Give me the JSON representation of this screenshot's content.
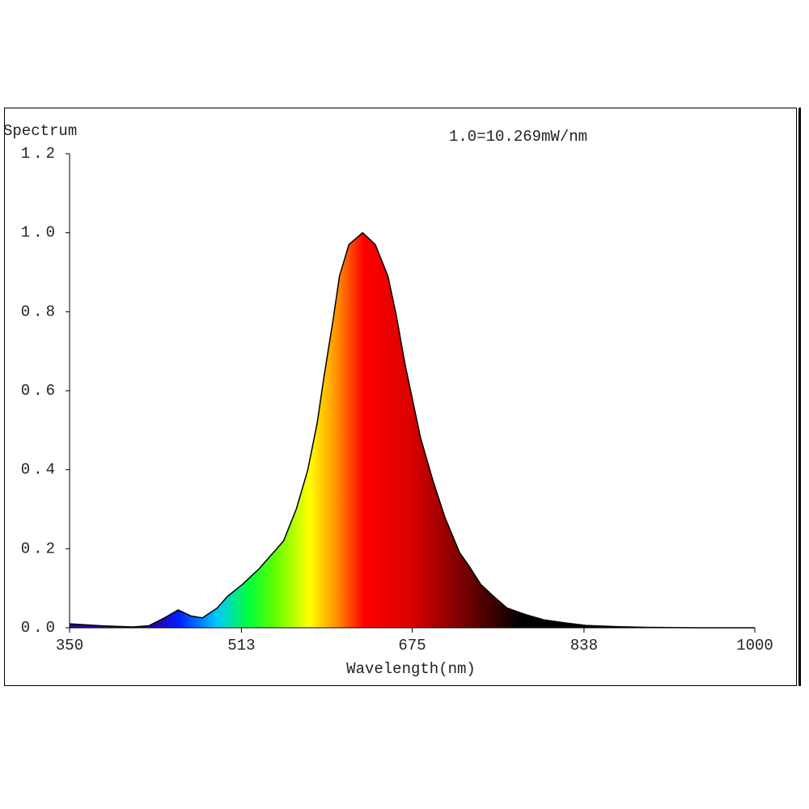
{
  "chart_data": {
    "type": "area",
    "y_label": "Spectrum",
    "annotation": "1.0=10.269mW/nm",
    "x_label": "Wavelength(nm)",
    "x": [
      350,
      380,
      410,
      425,
      440,
      453,
      465,
      476,
      490,
      500,
      514,
      530,
      553,
      565,
      576,
      585,
      591,
      600,
      606,
      615,
      628,
      640,
      652,
      660,
      668,
      683,
      695,
      706,
      720,
      729,
      740,
      752,
      765,
      783,
      800,
      821,
      840,
      867,
      900,
      950,
      1000
    ],
    "values": [
      0.01,
      0.005,
      0.002,
      0.005,
      0.025,
      0.045,
      0.03,
      0.025,
      0.05,
      0.08,
      0.11,
      0.15,
      0.22,
      0.3,
      0.4,
      0.52,
      0.63,
      0.78,
      0.89,
      0.97,
      1.0,
      0.97,
      0.89,
      0.79,
      0.67,
      0.48,
      0.37,
      0.28,
      0.19,
      0.156,
      0.11,
      0.08,
      0.05,
      0.033,
      0.02,
      0.012,
      0.006,
      0.003,
      0.001,
      0,
      0
    ],
    "xlim": [
      350,
      1000
    ],
    "xticks": [
      350,
      513,
      675,
      838,
      1000
    ],
    "ylim": [
      0,
      1.2
    ],
    "yticks": [
      {
        "value": 0,
        "label": "0.0"
      },
      0.2,
      0.4,
      0.6,
      0.8,
      {
        "value": 1,
        "label": "1.0"
      },
      1.2
    ],
    "line_color": "#000000"
  }
}
